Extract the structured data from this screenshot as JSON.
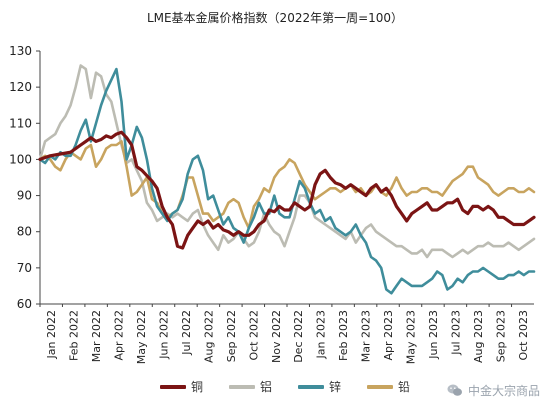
{
  "chart_data": {
    "type": "line",
    "title": "LME基本金属价格指数（2022年第一周=100）",
    "xlabel": "",
    "ylabel": "",
    "ylim": [
      60,
      130
    ],
    "yticks": [
      60,
      70,
      80,
      90,
      100,
      110,
      120,
      130
    ],
    "x_tick_labels": [
      "Jan 2022",
      "Feb 2022",
      "Mar 2022",
      "Apr 2022",
      "May 2022",
      "Jun 2022",
      "Jul 2022",
      "Aug 2022",
      "Sep 2022",
      "Oct 2022",
      "Nov 2022",
      "Dec 2022",
      "Jan 2023",
      "Feb 2023",
      "Mar 2023",
      "Apr 2023",
      "May 2023",
      "Jun 2023",
      "Jul 2023",
      "Aug 2023",
      "Sep 2023",
      "Oct 2023"
    ],
    "x_unit": "week index (week 0 = first week of 2022)",
    "x_range": [
      0,
      97
    ],
    "legend_position": "bottom",
    "grid": false,
    "series": [
      {
        "name": "铜",
        "color": "#7b1414",
        "x": [
          0,
          2,
          4,
          6,
          8,
          9,
          10,
          11,
          12,
          13,
          14,
          15,
          16,
          17,
          18,
          19,
          20,
          21,
          22,
          23,
          24,
          25,
          26,
          27,
          28,
          29,
          30,
          31,
          32,
          33,
          34,
          35,
          36,
          37,
          38,
          39,
          40,
          41,
          42,
          43,
          44,
          45,
          46,
          47,
          48,
          49,
          50,
          51,
          52,
          53,
          54,
          55,
          56,
          57,
          58,
          59,
          60,
          61,
          62,
          63,
          64,
          65,
          66,
          67,
          68,
          69,
          70,
          71,
          72,
          73,
          74,
          75,
          76,
          77,
          78,
          79,
          80,
          81,
          82,
          83,
          84,
          85,
          86,
          87,
          88,
          89,
          90,
          91,
          92,
          93,
          94,
          95,
          96,
          97
        ],
        "values": [
          100,
          101,
          101.5,
          102,
          104,
          105,
          106,
          105,
          105.5,
          106.5,
          106,
          107,
          107.5,
          106,
          104,
          98,
          97,
          95.5,
          94,
          92,
          87,
          84,
          82,
          76,
          75.5,
          79,
          81,
          83,
          82,
          83,
          81,
          82,
          80.5,
          80,
          79,
          80,
          79,
          79,
          80,
          82,
          83,
          86,
          85.5,
          87,
          86,
          86,
          88,
          87,
          86,
          87,
          93,
          96,
          97,
          95,
          93.5,
          93,
          92,
          93,
          92,
          91,
          90,
          92,
          93,
          91,
          92,
          90,
          87,
          85,
          83,
          85,
          86,
          87,
          88,
          86,
          86,
          87,
          88,
          88,
          89,
          86,
          85,
          87,
          87,
          86,
          87,
          86,
          84,
          84,
          83,
          82,
          82,
          82,
          83,
          84
        ]
      },
      {
        "name": "铝",
        "color": "#bcbcb3",
        "x": [
          0,
          1,
          2,
          3,
          4,
          5,
          6,
          7,
          8,
          9,
          10,
          11,
          12,
          13,
          14,
          15,
          16,
          17,
          18,
          19,
          20,
          21,
          22,
          23,
          24,
          25,
          26,
          27,
          28,
          29,
          30,
          31,
          32,
          33,
          34,
          35,
          36,
          37,
          38,
          39,
          40,
          41,
          42,
          43,
          44,
          45,
          46,
          47,
          48,
          49,
          50,
          51,
          52,
          53,
          54,
          55,
          56,
          57,
          58,
          59,
          60,
          61,
          62,
          63,
          64,
          65,
          66,
          67,
          68,
          69,
          70,
          71,
          72,
          73,
          74,
          75,
          76,
          77,
          78,
          79,
          80,
          81,
          82,
          83,
          84,
          85,
          86,
          87,
          88,
          89,
          90,
          91,
          92,
          93,
          94,
          95,
          96,
          97
        ],
        "values": [
          100,
          105,
          106,
          107,
          110,
          112,
          115,
          120,
          126,
          125,
          117,
          124,
          123,
          118,
          116,
          110,
          104,
          99,
          100,
          97,
          94,
          88,
          86,
          83,
          84,
          85,
          84,
          85,
          84,
          83,
          85,
          86,
          82,
          79,
          77,
          75,
          79,
          77,
          78,
          80,
          78,
          76,
          77,
          80,
          85,
          82,
          80,
          79,
          76,
          80,
          84,
          90,
          90,
          88,
          84,
          83,
          82,
          81,
          80,
          79,
          78,
          80,
          77,
          79,
          81,
          82,
          80,
          79,
          78,
          77,
          76,
          76,
          75,
          74,
          74,
          75,
          73,
          75,
          75,
          75,
          74,
          73,
          74,
          75,
          74,
          75,
          76,
          76,
          77,
          76,
          76,
          76,
          77,
          76,
          75,
          76,
          77,
          78
        ]
      },
      {
        "name": "锌",
        "color": "#3f8d9b",
        "x": [
          0,
          1,
          2,
          3,
          4,
          5,
          6,
          7,
          8,
          9,
          10,
          11,
          12,
          13,
          14,
          15,
          16,
          17,
          18,
          19,
          20,
          21,
          22,
          23,
          24,
          25,
          26,
          27,
          28,
          29,
          30,
          31,
          32,
          33,
          34,
          35,
          36,
          37,
          38,
          39,
          40,
          41,
          42,
          43,
          44,
          45,
          46,
          47,
          48,
          49,
          50,
          51,
          52,
          53,
          54,
          55,
          56,
          57,
          58,
          59,
          60,
          61,
          62,
          63,
          64,
          65,
          66,
          67,
          68,
          69,
          70,
          71,
          72,
          73,
          74,
          75,
          76,
          77,
          78,
          79,
          80,
          81,
          82,
          83,
          84,
          85,
          86,
          87,
          88,
          89,
          90,
          91,
          92,
          93,
          94,
          95,
          96,
          97
        ],
        "values": [
          100,
          99,
          101,
          100,
          102,
          101,
          101,
          104,
          108,
          111,
          105,
          110,
          115,
          119,
          122,
          125,
          116,
          100,
          104,
          109,
          106,
          100,
          92,
          87,
          85,
          83,
          85,
          86,
          89,
          96,
          100,
          101,
          97,
          89,
          90,
          86,
          82,
          84,
          81,
          80,
          77,
          81,
          84,
          88,
          85,
          85,
          90,
          85,
          84,
          84,
          89,
          94,
          92,
          88,
          85,
          86,
          83,
          84,
          81,
          80,
          79,
          80,
          82,
          79,
          77,
          73,
          72,
          70,
          64,
          63,
          65,
          67,
          66,
          65,
          65,
          65,
          66,
          67,
          69,
          68,
          64,
          65,
          67,
          66,
          68,
          69,
          69,
          70,
          69,
          68,
          67,
          67,
          68,
          68,
          69,
          68,
          69,
          69
        ]
      },
      {
        "name": "铅",
        "color": "#c8a45f",
        "x": [
          0,
          1,
          2,
          3,
          4,
          5,
          6,
          7,
          8,
          9,
          10,
          11,
          12,
          13,
          14,
          15,
          16,
          17,
          18,
          19,
          20,
          21,
          22,
          23,
          24,
          25,
          26,
          27,
          28,
          29,
          30,
          31,
          32,
          33,
          34,
          35,
          36,
          37,
          38,
          39,
          40,
          41,
          42,
          43,
          44,
          45,
          46,
          47,
          48,
          49,
          50,
          51,
          52,
          53,
          54,
          55,
          56,
          57,
          58,
          59,
          60,
          61,
          62,
          63,
          64,
          65,
          66,
          67,
          68,
          69,
          70,
          71,
          72,
          73,
          74,
          75,
          76,
          77,
          78,
          79,
          80,
          81,
          82,
          83,
          84,
          85,
          86,
          87,
          88,
          89,
          90,
          91,
          92,
          93,
          94,
          95,
          96,
          97
        ],
        "values": [
          100,
          101,
          100,
          98,
          97,
          100,
          102,
          101,
          100,
          103,
          104,
          98,
          100,
          103,
          104,
          104,
          105,
          98,
          90,
          91,
          93,
          95,
          89,
          88,
          85,
          84,
          85,
          86,
          90,
          95,
          95,
          90,
          85,
          85,
          83,
          84,
          85,
          88,
          89,
          88,
          84,
          81,
          87,
          89,
          92,
          91,
          95,
          97,
          98,
          100,
          99,
          96,
          93,
          91,
          89,
          90,
          91,
          92,
          92,
          91,
          92,
          93,
          91,
          92,
          90,
          91,
          93,
          91,
          90,
          92,
          95,
          92,
          90,
          91,
          91,
          92,
          92,
          91,
          91,
          90,
          92,
          94,
          95,
          96,
          98,
          98,
          95,
          94,
          93,
          91,
          90,
          91,
          92,
          92,
          91,
          91,
          92,
          91
        ]
      }
    ]
  },
  "legend": {
    "items": [
      {
        "label": "铜",
        "color": "#7b1414"
      },
      {
        "label": "铝",
        "color": "#bcbcb3"
      },
      {
        "label": "锌",
        "color": "#3f8d9b"
      },
      {
        "label": "铅",
        "color": "#c8a45f"
      }
    ]
  },
  "watermark": {
    "text": "中金大宗商品",
    "icon": "wechat-icon"
  }
}
